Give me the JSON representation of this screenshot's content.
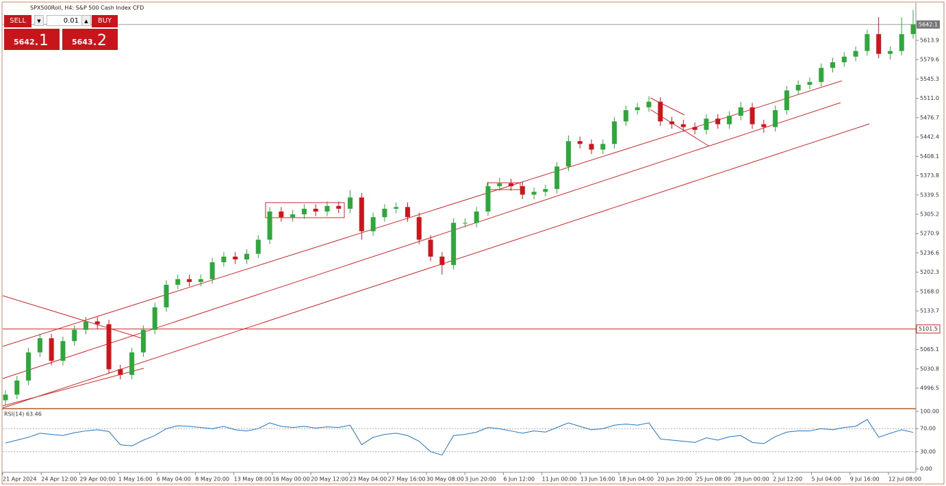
{
  "header": {
    "title": "SPX500Roll, H4:  S&P 500 Cash Index CFD"
  },
  "trade_panel": {
    "sell": "SELL",
    "buy": "BUY",
    "lot": "0.01",
    "sell_main": "5642",
    "sell_frac": ".1",
    "buy_main": "5643",
    "buy_frac": ".2"
  },
  "chart_data": {
    "type": "candlestick",
    "up_color": "#2ea83a",
    "down_color": "#d0141b",
    "ylim": [
      4961.3,
      5680.7
    ],
    "yticks": [
      5613.9,
      5579.6,
      5545.3,
      {
        "value": 5511.0,
        "label": "5511.0"
      },
      5476.7,
      5442.4,
      5408.1,
      5373.8,
      5339.5,
      5305.2,
      5270.9,
      5236.6,
      5202.3,
      {
        "value": 5168.0,
        "label": "5168.0"
      },
      5133.7,
      5065.1,
      5030.8,
      4996.5
    ],
    "last_price": 5642.1,
    "level": 5101.5,
    "x_labels": [
      "21 Apr 2024",
      "24 Apr 12:00",
      "29 Apr 00:00",
      "1 May 16:00",
      "6 May 04:00",
      "8 May 20:00",
      "13 May 08:00",
      "16 May 00:00",
      "20 May 12:00",
      "23 May 04:00",
      "27 May 16:00",
      "30 May 08:00",
      "3 Jun 20:00",
      "6 Jun 12:00",
      "11 Jun 00:00",
      "13 Jun 16:00",
      "18 Jun 04:00",
      "20 Jun 20:00",
      "25 Jun 08:00",
      "28 Jun 00:00",
      "2 Jul 12:00",
      "5 Jul 04:00",
      "9 Jul 16:00",
      "12 Jul 08:00"
    ],
    "open": [
      4975,
      4985,
      5010,
      5060,
      5085,
      5045,
      5080,
      5100,
      5115,
      5110,
      5030,
      5020,
      5060,
      5100,
      5140,
      5180,
      5190,
      5185,
      5190,
      5220,
      5230,
      5225,
      5235,
      5260,
      5310,
      5300,
      5305,
      5315,
      5310,
      5320,
      5315,
      5335,
      5275,
      5300,
      5315,
      5318,
      5300,
      5260,
      5230,
      5215,
      5290,
      5290,
      5310,
      5355,
      5360,
      5355,
      5340,
      5345,
      5350,
      5390,
      5435,
      5430,
      5420,
      5430,
      5470,
      5490,
      5495,
      5505,
      5470,
      5465,
      5460,
      5455,
      5475,
      5465,
      5480,
      5495,
      5465,
      5460,
      5490,
      5525,
      5535,
      5540,
      5565,
      5575,
      5585,
      5595,
      5625,
      5590,
      5595,
      5625
    ],
    "high": [
      4993,
      5018,
      5068,
      5093,
      5093,
      5088,
      5108,
      5123,
      5123,
      5118,
      5038,
      5068,
      5108,
      5148,
      5188,
      5198,
      5198,
      5198,
      5228,
      5238,
      5238,
      5243,
      5268,
      5318,
      5318,
      5313,
      5323,
      5323,
      5328,
      5328,
      5348,
      5343,
      5308,
      5323,
      5326,
      5326,
      5308,
      5268,
      5238,
      5298,
      5298,
      5318,
      5363,
      5370,
      5368,
      5363,
      5353,
      5358,
      5398,
      5445,
      5443,
      5438,
      5438,
      5478,
      5498,
      5503,
      5515,
      5513,
      5478,
      5473,
      5468,
      5483,
      5483,
      5488,
      5505,
      5503,
      5473,
      5498,
      5533,
      5543,
      5548,
      5573,
      5583,
      5593,
      5603,
      5633,
      5655,
      5603,
      5655,
      5668
    ],
    "low": [
      4967,
      4977,
      5002,
      5052,
      5037,
      5037,
      5072,
      5092,
      5102,
      5022,
      5012,
      5012,
      5052,
      5092,
      5132,
      5172,
      5177,
      5177,
      5182,
      5212,
      5217,
      5217,
      5227,
      5252,
      5292,
      5292,
      5297,
      5302,
      5302,
      5307,
      5307,
      5260,
      5267,
      5292,
      5307,
      5292,
      5252,
      5222,
      5198,
      5207,
      5282,
      5282,
      5302,
      5347,
      5347,
      5332,
      5332,
      5337,
      5342,
      5382,
      5422,
      5412,
      5412,
      5422,
      5462,
      5482,
      5487,
      5462,
      5457,
      5452,
      5447,
      5447,
      5457,
      5457,
      5472,
      5457,
      5450,
      5452,
      5482,
      5517,
      5527,
      5532,
      5557,
      5567,
      5577,
      5587,
      5582,
      5580,
      5587,
      5617
    ],
    "close": [
      4985,
      5010,
      5060,
      5085,
      5045,
      5080,
      5100,
      5115,
      5110,
      5030,
      5020,
      5060,
      5100,
      5140,
      5180,
      5190,
      5185,
      5190,
      5220,
      5230,
      5225,
      5235,
      5260,
      5310,
      5300,
      5305,
      5315,
      5310,
      5320,
      5315,
      5335,
      5275,
      5300,
      5315,
      5318,
      5300,
      5260,
      5230,
      5215,
      5290,
      5290,
      5310,
      5355,
      5360,
      5355,
      5340,
      5345,
      5350,
      5390,
      5435,
      5430,
      5420,
      5430,
      5470,
      5490,
      5495,
      5505,
      5470,
      5465,
      5460,
      5455,
      5475,
      5465,
      5480,
      5495,
      5465,
      5460,
      5490,
      5525,
      5535,
      5540,
      5565,
      5575,
      5585,
      5595,
      5625,
      5590,
      5595,
      5625,
      5642.1
    ],
    "rsi": {
      "title": "RSI(14) 63.46",
      "color": "#1e73be",
      "ylim": [
        0,
        100
      ],
      "yticks": [
        {
          "value": 100,
          "label": "100.00"
        },
        {
          "value": 70,
          "label": "70.00"
        },
        {
          "value": 30,
          "label": "30.00"
        },
        {
          "value": 0,
          "label": "0.00"
        }
      ],
      "levels": [
        70,
        30
      ],
      "values": [
        45,
        50,
        55,
        62,
        60,
        58,
        63,
        66,
        68,
        65,
        42,
        40,
        50,
        58,
        70,
        75,
        74,
        72,
        70,
        74,
        68,
        66,
        70,
        80,
        74,
        72,
        74,
        71,
        73,
        72,
        76,
        42,
        55,
        60,
        62,
        58,
        48,
        30,
        24,
        58,
        60,
        64,
        72,
        70,
        66,
        62,
        66,
        64,
        72,
        80,
        74,
        68,
        70,
        76,
        78,
        76,
        80,
        52,
        50,
        48,
        46,
        54,
        50,
        56,
        58,
        46,
        44,
        56,
        64,
        66,
        66,
        70,
        68,
        72,
        74,
        86,
        55,
        62,
        68,
        63.46
      ]
    }
  }
}
